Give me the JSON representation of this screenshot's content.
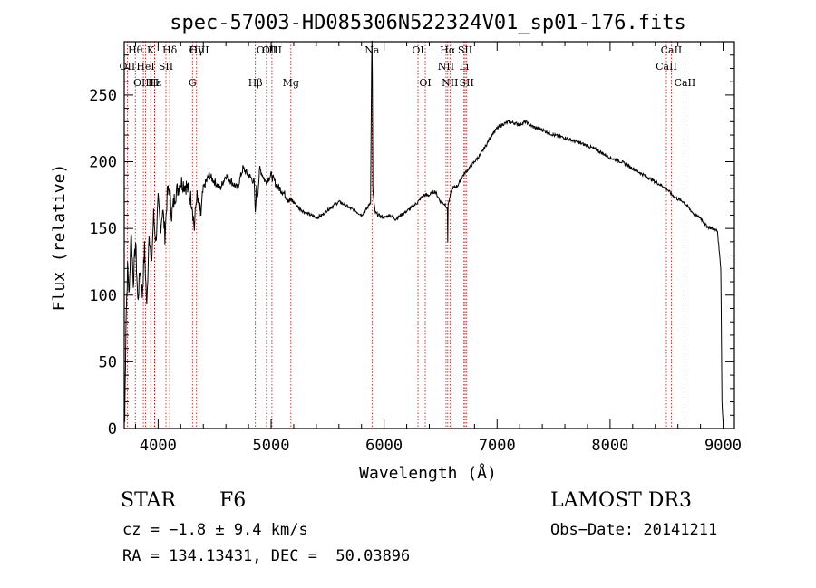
{
  "chart_data": {
    "type": "line",
    "title": "spec-57003-HD085306N522324V01_sp01-176.fits",
    "xlabel": "Wavelength (Å)",
    "ylabel": "Flux (relative)",
    "xlim": [
      3700,
      9100
    ],
    "ylim": [
      0,
      290
    ],
    "x_ticks": [
      4000,
      5000,
      6000,
      7000,
      8000,
      9000
    ],
    "y_ticks": [
      0,
      50,
      100,
      150,
      200,
      250
    ],
    "x_tick_labels": [
      "4000",
      "5000",
      "6000",
      "7000",
      "8000",
      "9000"
    ],
    "y_tick_labels": [
      "0",
      "50",
      "100",
      "150",
      "200",
      "250"
    ],
    "grid": false,
    "series": [
      {
        "name": "spectrum",
        "x": [
          3705,
          3715,
          3730,
          3745,
          3760,
          3780,
          3800,
          3820,
          3840,
          3860,
          3880,
          3900,
          3920,
          3940,
          3960,
          3980,
          4000,
          4020,
          4040,
          4060,
          4080,
          4100,
          4120,
          4150,
          4200,
          4250,
          4300,
          4320,
          4340,
          4360,
          4380,
          4400,
          4450,
          4500,
          4550,
          4600,
          4650,
          4700,
          4750,
          4800,
          4850,
          4860,
          4870,
          4880,
          4900,
          4950,
          5000,
          5050,
          5100,
          5150,
          5200,
          5250,
          5300,
          5350,
          5400,
          5450,
          5500,
          5550,
          5600,
          5650,
          5700,
          5750,
          5800,
          5850,
          5880,
          5890,
          5893,
          5896,
          5900,
          5910,
          5920,
          5950,
          6000,
          6050,
          6100,
          6150,
          6200,
          6250,
          6300,
          6350,
          6400,
          6450,
          6500,
          6540,
          6560,
          6563,
          6566,
          6580,
          6600,
          6650,
          6700,
          6750,
          6800,
          6850,
          6900,
          6950,
          7000,
          7050,
          7100,
          7150,
          7200,
          7250,
          7300,
          7350,
          7400,
          7450,
          7500,
          7600,
          7700,
          7800,
          7900,
          8000,
          8100,
          8200,
          8300,
          8400,
          8500,
          8550,
          8600,
          8650,
          8700,
          8750,
          8800,
          8850,
          8900,
          8950,
          8980,
          8990,
          9000
        ],
        "y": [
          5,
          80,
          120,
          100,
          150,
          110,
          140,
          95,
          120,
          100,
          135,
          90,
          150,
          120,
          160,
          140,
          170,
          150,
          165,
          145,
          175,
          180,
          160,
          175,
          185,
          182,
          170,
          150,
          175,
          165,
          160,
          180,
          190,
          185,
          180,
          190,
          185,
          180,
          195,
          190,
          185,
          160,
          180,
          175,
          195,
          185,
          190,
          182,
          178,
          172,
          170,
          165,
          162,
          160,
          158,
          160,
          164,
          167,
          170,
          168,
          165,
          163,
          160,
          165,
          170,
          275,
          290,
          260,
          180,
          170,
          162,
          160,
          158,
          160,
          157,
          160,
          163,
          166,
          170,
          175,
          175,
          178,
          170,
          168,
          165,
          140,
          168,
          172,
          180,
          182,
          190,
          195,
          200,
          205,
          212,
          220,
          225,
          228,
          230,
          229,
          228,
          230,
          227,
          225,
          224,
          222,
          220,
          218,
          215,
          212,
          208,
          203,
          200,
          195,
          190,
          185,
          180,
          175,
          172,
          170,
          165,
          160,
          158,
          152,
          150,
          148,
          120,
          20,
          5
        ]
      }
    ],
    "line_markers": [
      {
        "label": "Hθ",
        "x": 3798
      },
      {
        "label": "K",
        "x": 3934
      },
      {
        "label": "Hδ",
        "x": 4102
      },
      {
        "label": "OIII",
        "x": 4363
      },
      {
        "label": "Hγ",
        "x": 4340
      },
      {
        "label": "OIII",
        "x": 4959
      },
      {
        "label": "OIII",
        "x": 5007
      },
      {
        "label": "Na",
        "x": 5893
      },
      {
        "label": "OI",
        "x": 6300
      },
      {
        "label": "Hα",
        "x": 6563
      },
      {
        "label": "SII",
        "x": 6717
      },
      {
        "label": "CaII",
        "x": 8542
      },
      {
        "label": "OII",
        "x": 3727
      },
      {
        "label": "HeI",
        "x": 3889
      },
      {
        "label": "SII",
        "x": 4069
      },
      {
        "label": "CaII",
        "x": 8498
      },
      {
        "label": "NII",
        "x": 6548
      },
      {
        "label": "Li",
        "x": 6707
      },
      {
        "label": "OIII",
        "x": 3869
      },
      {
        "label": "Hε",
        "x": 3970
      },
      {
        "label": "H",
        "x": 3968
      },
      {
        "label": "G",
        "x": 4304
      },
      {
        "label": "Hβ",
        "x": 4861
      },
      {
        "label": "Mg",
        "x": 5175
      },
      {
        "label": "OI",
        "x": 6364
      },
      {
        "label": "NII",
        "x": 6583
      },
      {
        "label": "SII",
        "x": 6731
      },
      {
        "label": "CaII",
        "x": 8662
      }
    ]
  },
  "info": {
    "object_class": "STAR",
    "subclass": "F6",
    "survey": "LAMOST DR3",
    "cz": "cz = −1.8 ± 9.4 km/s",
    "obs_date": "Obs−Date: 20141211",
    "coords": "RA = 134.13431, DEC =  50.03896"
  },
  "colors": {
    "line": "#000000",
    "marker": "#cc0000",
    "background": "#ffffff"
  }
}
